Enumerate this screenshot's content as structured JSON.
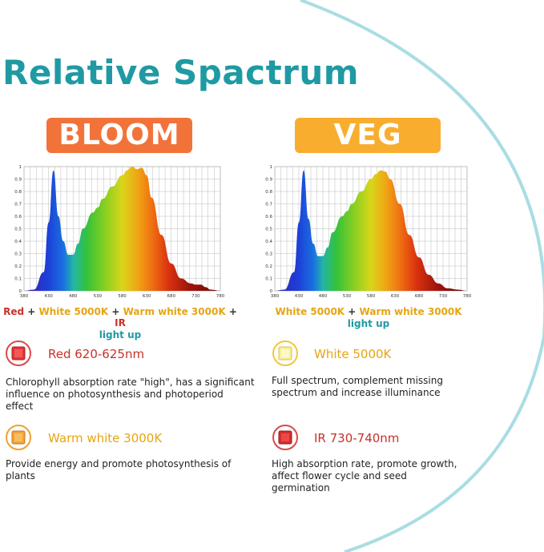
{
  "title": "Relative Spactrum",
  "bloom": {
    "label": "BLOOM",
    "legend": {
      "red": "Red",
      "plus1": "+",
      "white": "White 5000K",
      "plus2": "+",
      "warm": "Warm white 3000K",
      "plus3": "+",
      "ir": "IR",
      "line2": "light up"
    }
  },
  "veg": {
    "label": "VEG",
    "legend": {
      "white": "White 5000K",
      "plus1": "+",
      "warm": "Warm white 3000K",
      "line2": "light up"
    }
  },
  "chart_axes": {
    "y_ticks": [
      "0",
      "0.1",
      "0.2",
      "0.3",
      "0.4",
      "0.5",
      "0.6",
      "0.7",
      "0.8",
      "0.9",
      "1"
    ],
    "x_ticks": [
      "380",
      "430",
      "480",
      "530",
      "580",
      "630",
      "680",
      "730",
      "780"
    ]
  },
  "chart_data": [
    {
      "type": "area",
      "title": "BLOOM",
      "xlabel": "",
      "ylabel": "",
      "xlim": [
        380,
        780
      ],
      "ylim": [
        0,
        1
      ],
      "grid": true,
      "x": [
        380,
        400,
        420,
        430,
        440,
        450,
        460,
        470,
        480,
        490,
        500,
        520,
        530,
        540,
        560,
        580,
        590,
        600,
        610,
        620,
        630,
        640,
        660,
        680,
        700,
        720,
        730,
        740,
        750,
        760,
        780
      ],
      "values": [
        0,
        0.01,
        0.15,
        0.55,
        0.97,
        0.6,
        0.4,
        0.29,
        0.29,
        0.38,
        0.5,
        0.63,
        0.67,
        0.74,
        0.84,
        0.93,
        0.97,
        1.0,
        0.98,
        0.99,
        0.93,
        0.75,
        0.45,
        0.22,
        0.1,
        0.06,
        0.05,
        0.05,
        0.03,
        0.01,
        0
      ]
    },
    {
      "type": "area",
      "title": "VEG",
      "xlabel": "",
      "ylabel": "",
      "xlim": [
        380,
        780
      ],
      "ylim": [
        0,
        1
      ],
      "grid": true,
      "x": [
        380,
        400,
        420,
        430,
        440,
        450,
        460,
        470,
        480,
        490,
        500,
        520,
        530,
        540,
        560,
        580,
        590,
        600,
        610,
        620,
        640,
        660,
        680,
        700,
        720,
        740,
        760,
        780
      ],
      "values": [
        0,
        0.01,
        0.15,
        0.55,
        0.97,
        0.58,
        0.38,
        0.28,
        0.28,
        0.35,
        0.47,
        0.6,
        0.64,
        0.7,
        0.8,
        0.9,
        0.94,
        0.97,
        0.96,
        0.9,
        0.7,
        0.45,
        0.27,
        0.13,
        0.06,
        0.02,
        0.01,
        0
      ]
    }
  ],
  "items": [
    {
      "name": "red",
      "label": "Red 620-625nm",
      "label_color": "#c8312a",
      "icon_color": "#e4343a",
      "ring_color": "#d94a4a",
      "desc": [
        "Chlorophyll absorption rate \"high\", has a significant",
        "influence on photosynthesis and photoperiod",
        "effect"
      ]
    },
    {
      "name": "white",
      "label": "White 5000K",
      "label_color": "#e6a512",
      "icon_color": "#f7ef9b",
      "ring_color": "#f0c63c",
      "desc": [
        "Full spectrum, complement missing",
        "spectrum and increase illuminance"
      ]
    },
    {
      "name": "warm",
      "label": "Warm white 3000K",
      "label_color": "#e6a512",
      "icon_color": "#f3a23a",
      "ring_color": "#f0a030",
      "desc": [
        "Provide energy and promote photosynthesis of",
        "plants"
      ]
    },
    {
      "name": "ir",
      "label": "IR 730-740nm",
      "label_color": "#c8312a",
      "icon_color": "#d42d2d",
      "ring_color": "#d94a4a",
      "desc": [
        "High absorption rate, promote growth,",
        "affect flower cycle and seed",
        "germination"
      ]
    }
  ]
}
